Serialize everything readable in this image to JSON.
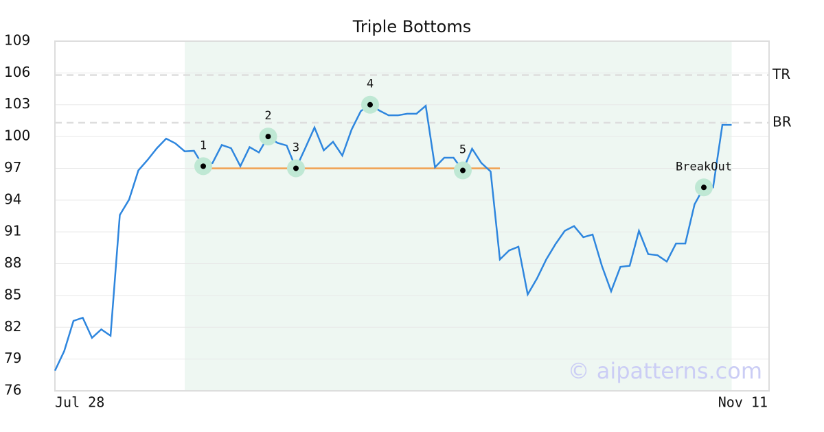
{
  "chart_data": {
    "type": "line",
    "title": "Triple Bottoms",
    "categories": [
      "Jul 28",
      null,
      null,
      null,
      null,
      null,
      null,
      null,
      null,
      null,
      null,
      null,
      null,
      null,
      null,
      null,
      null,
      null,
      null,
      null,
      null,
      null,
      null,
      null,
      null,
      null,
      null,
      null,
      null,
      null,
      null,
      null,
      null,
      null,
      null,
      null,
      null,
      null,
      null,
      null,
      null,
      null,
      null,
      null,
      null,
      null,
      null,
      null,
      null,
      null,
      null,
      null,
      null,
      null,
      null,
      null,
      null,
      null,
      null,
      null,
      null,
      null,
      null,
      null,
      null,
      null,
      null,
      null,
      null,
      null,
      null,
      null,
      null,
      "Nov 11"
    ],
    "values": [
      77.9,
      79.75,
      82.6,
      82.9,
      81.0,
      81.8,
      81.2,
      92.6,
      94.05,
      96.8,
      97.8,
      98.9,
      99.8,
      99.35,
      98.6,
      98.65,
      97.2,
      97.5,
      99.2,
      98.9,
      97.2,
      99.0,
      98.5,
      100.0,
      99.4,
      99.15,
      97.0,
      98.9,
      100.85,
      98.7,
      99.5,
      98.2,
      100.65,
      102.4,
      103.0,
      102.45,
      102.0,
      102.0,
      102.15,
      102.15,
      102.9,
      97.1,
      98.0,
      98.0,
      96.8,
      98.85,
      97.5,
      96.7,
      88.4,
      89.25,
      89.6,
      85.1,
      86.6,
      88.4,
      89.85,
      91.1,
      91.55,
      90.5,
      90.75,
      87.8,
      85.4,
      87.7,
      87.8,
      91.1,
      88.9,
      88.8,
      88.2,
      89.9,
      89.9,
      93.6,
      95.2,
      95.2,
      101.1,
      101.1
    ],
    "color": "#2e86de",
    "ylim": [
      76,
      109
    ],
    "yticks": [
      76,
      79,
      82,
      85,
      88,
      91,
      94,
      97,
      100,
      103,
      106,
      109
    ],
    "grid": true,
    "shade": {
      "from": 14,
      "to": 73,
      "color": "#eef7f2"
    },
    "support": {
      "from": 16,
      "to": 48,
      "value": 97.0,
      "color": "#f0a050"
    },
    "levels": [
      {
        "label": "TR",
        "value": 105.8
      },
      {
        "label": "BR",
        "value": 101.3
      }
    ],
    "annotations": [
      {
        "label": "1",
        "x": 16,
        "y": 97.2
      },
      {
        "label": "2",
        "x": 23,
        "y": 100.0
      },
      {
        "label": "3",
        "x": 26,
        "y": 97.0
      },
      {
        "label": "4",
        "x": 34,
        "y": 103.0
      },
      {
        "label": "5",
        "x": 44,
        "y": 96.8
      },
      {
        "label": "BreakOut",
        "x": 70,
        "y": 95.2
      }
    ],
    "watermark": "© aipatterns.com"
  }
}
